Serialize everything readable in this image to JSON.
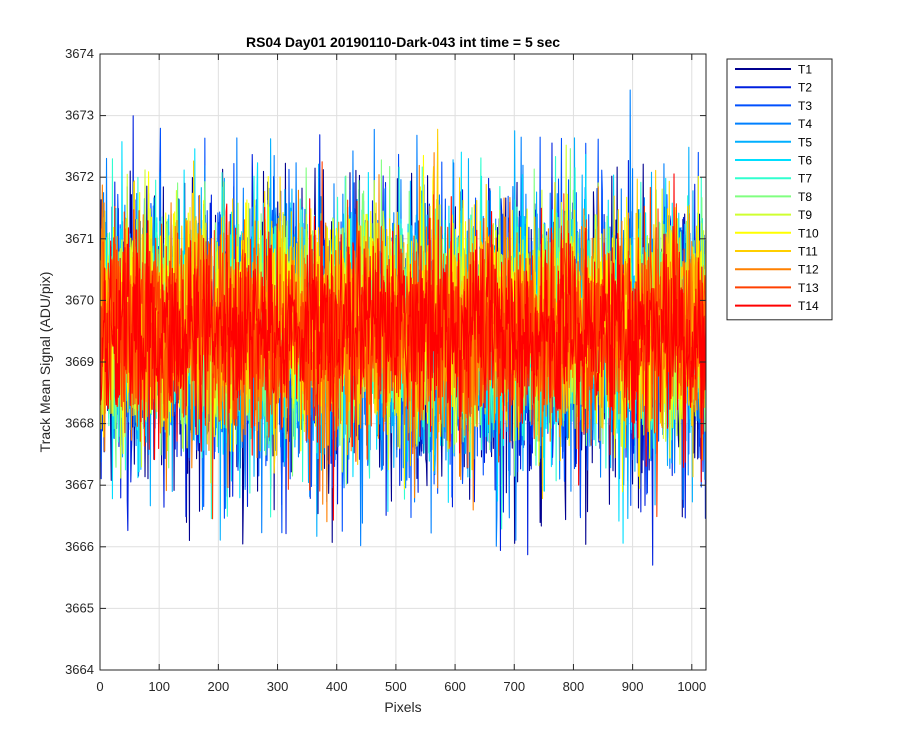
{
  "chart_data": {
    "type": "line",
    "title": "RS04 Day01 20190110-Dark-043 int time = 5 sec",
    "xlabel": "Pixels",
    "ylabel": "Track Mean Signal (ADU/pix)",
    "xlim": [
      0,
      1024
    ],
    "ylim": [
      3664,
      3674
    ],
    "xticks": [
      0,
      100,
      200,
      300,
      400,
      500,
      600,
      700,
      800,
      900,
      1000
    ],
    "yticks": [
      3664,
      3665,
      3666,
      3667,
      3668,
      3669,
      3670,
      3671,
      3672,
      3673,
      3674
    ],
    "grid": true,
    "legend_position": "outside-top-right",
    "n_points": 1024,
    "series": [
      {
        "name": "T1",
        "color": "#00008f",
        "mean": 3669.3,
        "std": 1.25,
        "envelope": [
          3665.5,
          3672.3
        ]
      },
      {
        "name": "T2",
        "color": "#0020df",
        "mean": 3669.35,
        "std": 1.2,
        "envelope": [
          3664.6,
          3673.0
        ]
      },
      {
        "name": "T3",
        "color": "#0050ff",
        "mean": 3669.4,
        "std": 1.15,
        "envelope": [
          3665.8,
          3672.8
        ]
      },
      {
        "name": "T4",
        "color": "#0080ff",
        "mean": 3669.45,
        "std": 1.1,
        "envelope": [
          3666.0,
          3673.5
        ]
      },
      {
        "name": "T5",
        "color": "#00afff",
        "mean": 3669.5,
        "std": 1.05,
        "envelope": [
          3666.0,
          3673.2
        ]
      },
      {
        "name": "T6",
        "color": "#00dfff",
        "mean": 3669.55,
        "std": 1.0,
        "envelope": [
          3666.0,
          3672.8
        ]
      },
      {
        "name": "T7",
        "color": "#30ffcf",
        "mean": 3669.55,
        "std": 0.98,
        "envelope": [
          3666.2,
          3672.7
        ]
      },
      {
        "name": "T8",
        "color": "#80ff80",
        "mean": 3669.6,
        "std": 0.95,
        "envelope": [
          3666.3,
          3672.6
        ]
      },
      {
        "name": "T9",
        "color": "#cfff30",
        "mean": 3669.6,
        "std": 0.92,
        "envelope": [
          3665.7,
          3672.9
        ]
      },
      {
        "name": "T10",
        "color": "#ffff00",
        "mean": 3669.6,
        "std": 0.9,
        "envelope": [
          3666.5,
          3673.8
        ]
      },
      {
        "name": "T11",
        "color": "#ffcf00",
        "mean": 3669.55,
        "std": 0.9,
        "envelope": [
          3665.8,
          3672.9
        ]
      },
      {
        "name": "T12",
        "color": "#ff8000",
        "mean": 3669.5,
        "std": 0.88,
        "envelope": [
          3665.6,
          3672.9
        ]
      },
      {
        "name": "T13",
        "color": "#ff4000",
        "mean": 3669.5,
        "std": 0.85,
        "envelope": [
          3665.5,
          3673.0
        ]
      },
      {
        "name": "T14",
        "color": "#ff0000",
        "mean": 3669.5,
        "std": 0.8,
        "envelope": [
          3666.1,
          3672.9
        ]
      }
    ]
  }
}
